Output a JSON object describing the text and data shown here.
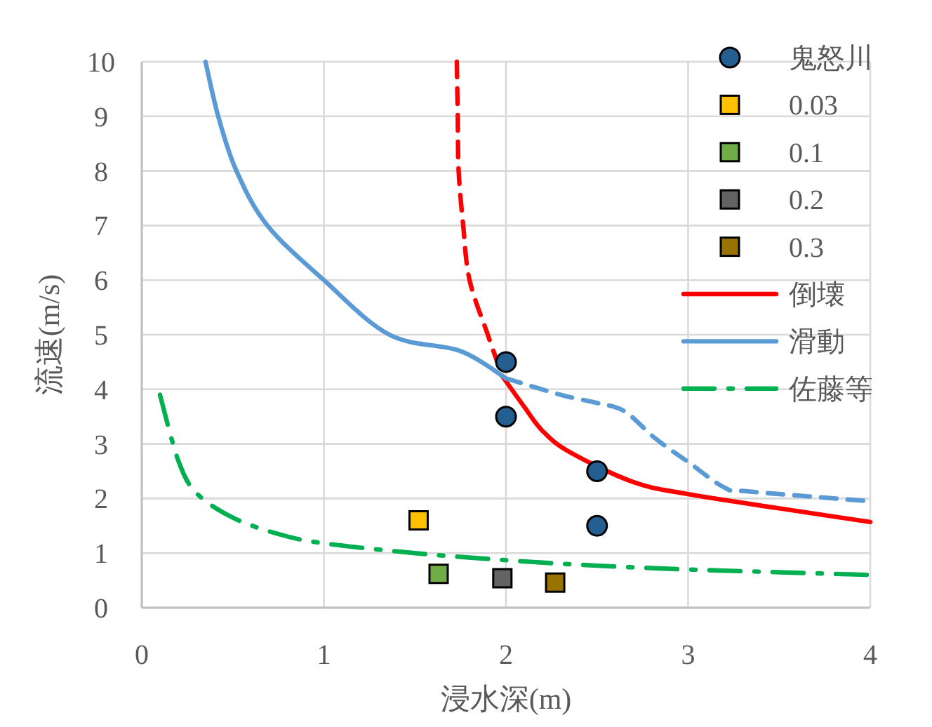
{
  "chart_data": {
    "type": "scatter",
    "xlabel": "浸水深(m)",
    "ylabel": "流速(m/s)",
    "xlim": [
      0,
      4
    ],
    "xticks": [
      0,
      1,
      2,
      3,
      4
    ],
    "ylim": [
      0,
      10
    ],
    "yticks": [
      0,
      1,
      2,
      3,
      4,
      5,
      6,
      7,
      8,
      9,
      10
    ],
    "grid": true,
    "legend": "top right",
    "series": [
      {
        "name": "鬼怒川",
        "marker": "circle",
        "color": "#255e91",
        "x": [
          2,
          2,
          2.5,
          2.5
        ],
        "values": [
          4.5,
          3.5,
          2.5,
          1.5
        ]
      },
      {
        "name": "0.03",
        "marker": "square",
        "color": "#ffc000",
        "x": [
          1.52
        ],
        "values": [
          1.6
        ]
      },
      {
        "name": "0.1",
        "marker": "square",
        "color": "#70ad47",
        "x": [
          1.63
        ],
        "values": [
          0.62
        ]
      },
      {
        "name": "0.2",
        "marker": "square",
        "color": "#636363",
        "x": [
          1.98
        ],
        "values": [
          0.54
        ]
      },
      {
        "name": "0.3",
        "marker": "square",
        "color": "#997300",
        "x": [
          2.27
        ],
        "values": [
          0.46
        ]
      },
      {
        "name": "倒壊",
        "type": "line",
        "marker": "none",
        "line_style": "solid",
        "color": "#ff0000",
        "x": [
          1.98,
          2.1,
          2.2,
          2.35,
          2.7,
          3,
          3.5,
          4
        ],
        "values": [
          4.24,
          3.68,
          3.24,
          2.85,
          2.3,
          2.08,
          1.82,
          1.57
        ]
      },
      {
        "type": "line",
        "marker": "none",
        "line_style": "dashed",
        "color": "#ff0000",
        "x": [
          1.73,
          1.735,
          1.74,
          1.765,
          1.8,
          1.9,
          1.98
        ],
        "values": [
          10,
          9,
          8,
          7,
          6,
          5,
          4.24
        ]
      },
      {
        "name": "滑動",
        "type": "line",
        "marker": "none",
        "line_style": "solid",
        "color": "#5b9bd5",
        "x": [
          0.35,
          0.42,
          0.52,
          0.69,
          1,
          1.36,
          1.75,
          2
        ],
        "values": [
          10,
          9,
          8,
          7,
          6,
          5,
          4.7,
          4.2
        ]
      },
      {
        "type": "line",
        "marker": "none",
        "line_style": "dashed",
        "color": "#5b9bd5",
        "x": [
          2,
          2.3,
          2.5,
          2.65,
          2.82,
          3,
          3.2,
          3.33,
          4
        ],
        "values": [
          4.2,
          3.9,
          3.75,
          3.6,
          3.1,
          2.67,
          2.2,
          2.13,
          1.95
        ]
      },
      {
        "name": "佐藤等",
        "type": "line",
        "marker": "none",
        "line_style": "dashdot",
        "color": "#00b050",
        "x": [
          0.1,
          0.2,
          0.3,
          0.5,
          0.75,
          1,
          1.5,
          2,
          2.5,
          3,
          3.5,
          4
        ],
        "values": [
          3.9,
          2.7,
          2.1,
          1.65,
          1.35,
          1.18,
          1.0,
          0.87,
          0.77,
          0.7,
          0.65,
          0.6
        ]
      }
    ]
  }
}
